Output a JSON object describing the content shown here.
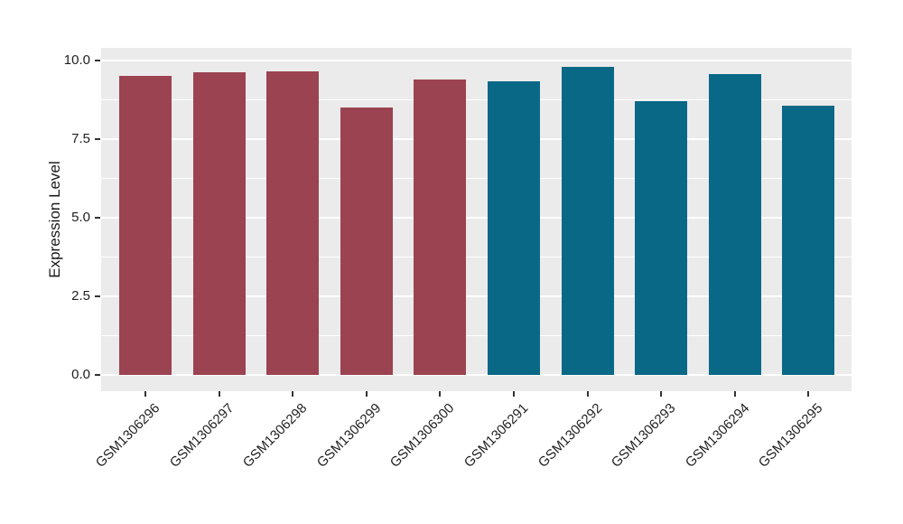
{
  "chart_data": {
    "type": "bar",
    "title": "",
    "xlabel": "",
    "ylabel": "Expression Level",
    "categories": [
      "GSM1306296",
      "GSM1306297",
      "GSM1306298",
      "GSM1306299",
      "GSM1306300",
      "GSM1306291",
      "GSM1306292",
      "GSM1306293",
      "GSM1306294",
      "GSM1306295"
    ],
    "values": [
      9.5,
      9.6,
      9.63,
      8.49,
      9.37,
      9.34,
      9.78,
      8.69,
      9.55,
      8.54
    ],
    "bar_colors": [
      "#9B4351",
      "#9B4351",
      "#9B4351",
      "#9B4351",
      "#9B4351",
      "#0A6887",
      "#0A6887",
      "#0A6887",
      "#0A6887",
      "#0A6887"
    ],
    "yticks": [
      0.0,
      2.5,
      5.0,
      7.5,
      10.0
    ],
    "ytick_labels": [
      "0.0",
      "2.5",
      "5.0",
      "7.5",
      "10.0"
    ],
    "minor_yticks": [
      1.25,
      3.75,
      6.25,
      8.75
    ],
    "ylim": [
      0,
      10
    ],
    "grid": "on",
    "legend_position": "none",
    "colors": {
      "group_left": "#9B4351",
      "group_right": "#0A6887",
      "panel_bg": "#EBEBEB",
      "grid": "#FFFFFF",
      "text": "#1F1F1F",
      "tick": "#333333",
      "figure_bg": "#FFFFFF"
    }
  }
}
